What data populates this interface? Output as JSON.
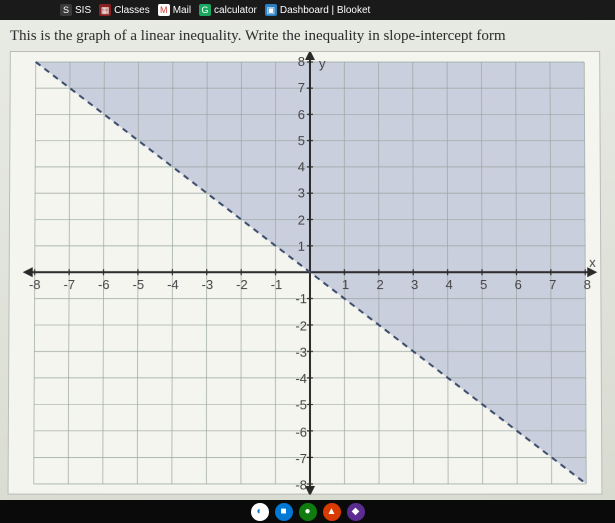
{
  "browser": {
    "bookmarks": [
      {
        "label": "SIS",
        "icon_bg": "#3a3a3a",
        "icon_glyph": "S"
      },
      {
        "label": "Classes",
        "icon_bg": "#8b2020",
        "icon_glyph": "▦"
      },
      {
        "label": "Mail",
        "icon_bg": "#ffffff",
        "icon_glyph": "M",
        "icon_color": "#d04030"
      },
      {
        "label": "calculator",
        "icon_bg": "#1aa860",
        "icon_glyph": "G"
      },
      {
        "label": "Dashboard | Blooket",
        "icon_bg": "#2a7fc0",
        "icon_glyph": "▣"
      }
    ]
  },
  "question_text": "This is the graph of a linear inequality. Write the inequality in slope-intercept form",
  "chart": {
    "type": "linear-inequality-graph",
    "xlim": [
      -8,
      8
    ],
    "ylim": [
      -8,
      8
    ],
    "xtick_step": 1,
    "ytick_step": 1,
    "x_tick_labels": [
      "-8",
      "-7",
      "-6",
      "-5",
      "-4",
      "-3",
      "-2",
      "-1",
      "1",
      "2",
      "3",
      "4",
      "5",
      "6",
      "7",
      "8"
    ],
    "y_tick_labels_pos": [
      "1",
      "2",
      "3",
      "4",
      "5",
      "6",
      "7",
      "8"
    ],
    "y_tick_labels_neg": [
      "-1",
      "-2",
      "-3",
      "-4",
      "-5",
      "-6",
      "-7",
      "-8"
    ],
    "x_axis_label": "x",
    "y_axis_label": "y",
    "grid_major_color": "#9aa5a0",
    "grid_minor_color": "#c0c8c2",
    "axis_color": "#2a2a2a",
    "background_color": "#f4f5ef",
    "boundary_line": {
      "style": "dashed",
      "color": "#3a4a6a",
      "width": 2,
      "points": [
        [
          -8,
          8
        ],
        [
          8,
          -8
        ]
      ],
      "slope": -1,
      "intercept": 0
    },
    "shaded_region": {
      "side": "above",
      "fill_color": "#7a8ac0",
      "fill_opacity": 0.35,
      "inequality": "y > -x"
    },
    "label_fontsize": 13,
    "label_color": "#444444"
  },
  "taskbar_icons": [
    {
      "bg": "#ffffff",
      "glyph": "◐",
      "color": "#0078d4"
    },
    {
      "bg": "#0078d4",
      "glyph": "■",
      "color": "#fff"
    },
    {
      "bg": "#107c10",
      "glyph": "●",
      "color": "#fff"
    },
    {
      "bg": "#d83b01",
      "glyph": "▲",
      "color": "#fff"
    },
    {
      "bg": "#5c2d91",
      "glyph": "◆",
      "color": "#fff"
    }
  ]
}
